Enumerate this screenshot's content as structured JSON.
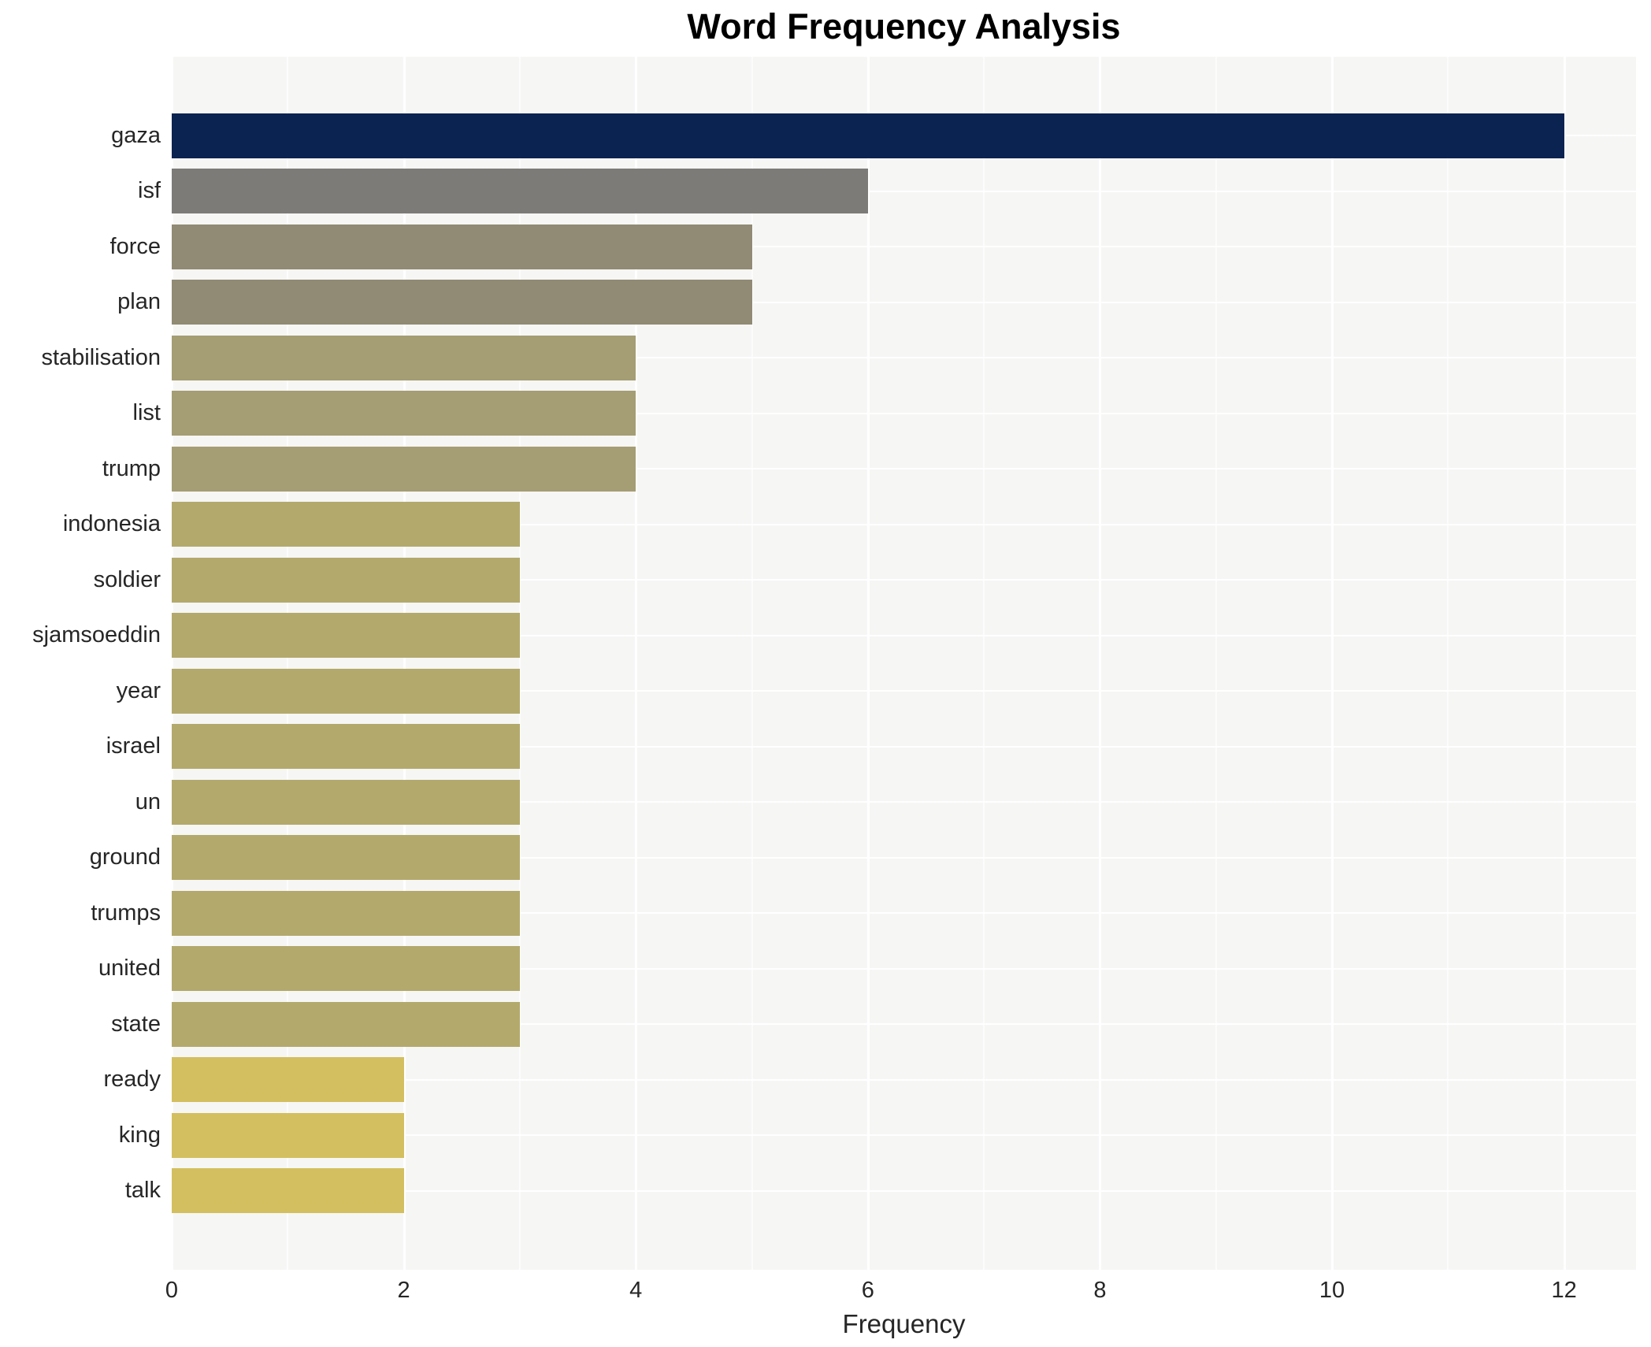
{
  "chart_data": {
    "type": "bar",
    "orientation": "horizontal",
    "title": "Word Frequency Analysis",
    "xlabel": "Frequency",
    "ylabel": "",
    "categories": [
      "gaza",
      "isf",
      "force",
      "plan",
      "stabilisation",
      "list",
      "trump",
      "indonesia",
      "soldier",
      "sjamsoeddin",
      "year",
      "israel",
      "un",
      "ground",
      "trumps",
      "united",
      "state",
      "ready",
      "king",
      "talk"
    ],
    "values": [
      12,
      6,
      5,
      5,
      4,
      4,
      4,
      3,
      3,
      3,
      3,
      3,
      3,
      3,
      3,
      3,
      3,
      2,
      2,
      2
    ],
    "bar_colors": [
      "#0b2351",
      "#7d7b77",
      "#918a74",
      "#918a74",
      "#a59d74",
      "#a59d74",
      "#a59d74",
      "#b3a96c",
      "#b3a96c",
      "#b3a96c",
      "#b3a96c",
      "#b3a96c",
      "#b3a96c",
      "#b3a96c",
      "#b3a96c",
      "#b3a96c",
      "#b3a96c",
      "#d3bf5f",
      "#d3bf5f",
      "#d3bf5f"
    ],
    "xlim": [
      0,
      12.62
    ],
    "x_ticks": [
      0,
      2,
      4,
      6,
      8,
      10,
      12
    ],
    "x_minor_ticks": [
      1,
      3,
      5,
      7,
      9,
      11
    ],
    "grid": "major-and-minor-vertical-plus-horizontal-category-lines",
    "legend": "none",
    "panel_background": "#f6f6f5",
    "grid_color": "#ffffff",
    "title_color": "#000000",
    "tick_label_color": "#262626"
  }
}
